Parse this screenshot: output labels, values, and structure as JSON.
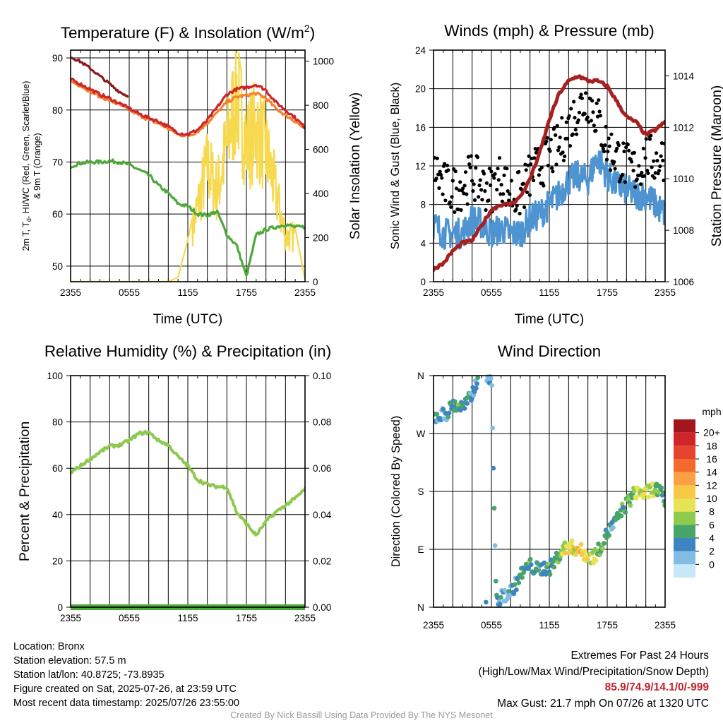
{
  "time_ticks": [
    "2355",
    "0555",
    "1155",
    "1755",
    "2355"
  ],
  "panels": {
    "temperature": {
      "title_main": "Temperature (F) & Insolation (W/m",
      "title_sup": "2",
      "title_end": ")",
      "xlabel": "Time (UTC)",
      "ylabel_left_line1": "2m T, T",
      "ylabel_left_sub": "d",
      "ylabel_left_line1_end": ", HI/WC (Red, Green, Scarlet/Blue)",
      "ylabel_left_line2": "& 9m T (Orange)",
      "ylabel_right": "Solar Insolation (Yellow)",
      "left_ticks": [
        "50",
        "60",
        "70",
        "80",
        "90"
      ],
      "right_ticks": [
        "0",
        "200",
        "400",
        "600",
        "800",
        "1000"
      ]
    },
    "winds": {
      "title": "Winds (mph) & Pressure (mb)",
      "xlabel": "Time (UTC)",
      "ylabel_left": "Sonic Wind & Gust (Blue, Black)",
      "ylabel_right": "Station Pressure (Maroon)",
      "left_ticks": [
        "0",
        "4",
        "8",
        "12",
        "16",
        "20",
        "24"
      ],
      "right_ticks": [
        "1006",
        "1008",
        "1010",
        "1012",
        "1014"
      ]
    },
    "humidity": {
      "title": "Relative Humidity (%) & Precipitation (in)",
      "ylabel_left": "Percent & Precipitation",
      "left_ticks": [
        "0",
        "20",
        "40",
        "60",
        "80",
        "100"
      ],
      "right_ticks": [
        "0.00",
        "0.02",
        "0.04",
        "0.06",
        "0.08",
        "0.10"
      ]
    },
    "direction": {
      "title": "Wind Direction",
      "ylabel_left": "Direction (Colored By Speed)",
      "dir_ticks": [
        "N",
        "E",
        "S",
        "W",
        "N"
      ],
      "legend_title": "mph",
      "legend_labels": [
        "20+",
        "18",
        "16",
        "14",
        "12",
        "10",
        "8",
        "6",
        "4",
        "2",
        "0"
      ],
      "legend_colors": [
        "#a2171e",
        "#cf2529",
        "#e8432f",
        "#f26a2c",
        "#fca045",
        "#f6c843",
        "#e8e356",
        "#8fca4d",
        "#47a56a",
        "#3e84c1",
        "#83bde3",
        "#c7e8f7"
      ]
    }
  },
  "chart_data": [
    {
      "type": "line",
      "title": "Temperature (F) & Insolation (W/m2)",
      "xlabel": "Time (UTC)",
      "ylabel": "2m T, Td, HI/WC (Red, Green, Scarlet/Blue) & 9m T (Orange)",
      "y2label": "Solar Insolation (Yellow)",
      "x": [
        0,
        1,
        2,
        3,
        4,
        5,
        6,
        7,
        8,
        9,
        10,
        11,
        12,
        13,
        14,
        15,
        16,
        17,
        18,
        19,
        20,
        21,
        22,
        23,
        24
      ],
      "ylim": [
        47,
        91.5
      ],
      "y2lim": [
        0,
        1050
      ],
      "series": [
        {
          "name": "2m T",
          "color": "#cf2529",
          "values": [
            85.9,
            85,
            84,
            83,
            82.2,
            81.3,
            80.3,
            79.3,
            78.5,
            77.8,
            76.8,
            75.6,
            75.3,
            76.2,
            78,
            80.5,
            83,
            84,
            84.3,
            84.9,
            83.8,
            81.5,
            80,
            78.5,
            76.6
          ]
        },
        {
          "name": "9m T",
          "color": "#f3822f",
          "values": [
            85.5,
            84.7,
            83.6,
            82.6,
            81.8,
            81,
            80,
            79,
            78.1,
            77.4,
            76.4,
            75.3,
            75,
            75.8,
            77.5,
            79.5,
            81.5,
            82.5,
            82.8,
            83.2,
            82.3,
            80.3,
            79,
            77.8,
            76.3
          ]
        },
        {
          "name": "HI/WC",
          "color": "#8b1a1a",
          "values": [
            90.2,
            89.3,
            88,
            86.5,
            85,
            83.5,
            82.5,
            null,
            null,
            null,
            null,
            null,
            null,
            null,
            null,
            null,
            null,
            null,
            null,
            null,
            null,
            null,
            null,
            null,
            null
          ]
        },
        {
          "name": "Td",
          "color": "#4ea83b",
          "values": [
            69.2,
            69.8,
            70,
            70,
            70.2,
            70,
            69.5,
            68.5,
            67.5,
            65.5,
            64,
            62,
            61.5,
            60,
            59.8,
            60.5,
            56,
            54,
            48,
            56,
            57,
            57.5,
            58,
            57.5,
            57.5
          ]
        },
        {
          "name": "Solar Insolation",
          "color": "#f6d94e",
          "axis": "right",
          "values": [
            0,
            0,
            0,
            0,
            0,
            0,
            0,
            0,
            0,
            0,
            0,
            20,
            190,
            400,
            620,
            480,
            730,
            1010,
            730,
            820,
            700,
            480,
            240,
            240,
            10
          ]
        }
      ]
    },
    {
      "type": "line",
      "title": "Winds (mph) & Pressure (mb)",
      "xlabel": "Time (UTC)",
      "ylabel": "Sonic Wind & Gust (Blue, Black)",
      "y2label": "Station Pressure (Maroon)",
      "x": [
        0,
        1,
        2,
        3,
        4,
        5,
        6,
        7,
        8,
        9,
        10,
        11,
        12,
        13,
        14,
        15,
        16,
        17,
        18,
        19,
        20,
        21,
        22,
        23,
        24
      ],
      "ylim": [
        0,
        24
      ],
      "y2lim": [
        1006,
        1015
      ],
      "series": [
        {
          "name": "Sonic Wind",
          "color": "#4d94d0",
          "values": [
            6,
            5,
            5,
            5,
            6.5,
            6,
            5,
            5.5,
            5,
            5,
            6.5,
            7,
            8,
            9,
            10.5,
            11,
            10.5,
            13,
            11,
            10,
            9.5,
            9,
            9,
            8,
            7
          ]
        },
        {
          "name": "Gust",
          "color": "#000000",
          "values": [
            12,
            10,
            9.5,
            10,
            11,
            10,
            9.5,
            11,
            9,
            9,
            11,
            12,
            13,
            14,
            16,
            18,
            19,
            17,
            14,
            13,
            12,
            11.5,
            13,
            12.5,
            13
          ]
        },
        {
          "name": "Station Pressure",
          "color": "#a52020",
          "axis": "right",
          "values": [
            1006.5,
            1006.7,
            1007.2,
            1007.5,
            1007.6,
            1008.2,
            1008.8,
            1009,
            1009,
            1009.3,
            1010,
            1011,
            1012.3,
            1013.3,
            1013.8,
            1014,
            1013.8,
            1013.8,
            1013.6,
            1013,
            1012.4,
            1012.2,
            1011.7,
            1011.9,
            1012.2
          ]
        }
      ]
    },
    {
      "type": "line",
      "title": "Relative Humidity (%) & Precipitation (in)",
      "ylabel": "Percent & Precipitation",
      "x": [
        0,
        1,
        2,
        3,
        4,
        5,
        6,
        7,
        8,
        9,
        10,
        11,
        12,
        13,
        14,
        15,
        16,
        17,
        18,
        19,
        20,
        21,
        22,
        23,
        24
      ],
      "ylim": [
        0,
        100
      ],
      "y2lim": [
        0,
        0.1
      ],
      "series": [
        {
          "name": "Relative Humidity",
          "color": "#8ec94f",
          "values": [
            58,
            61,
            64,
            67,
            69.5,
            70,
            72,
            75,
            75.5,
            72,
            70,
            65,
            61,
            55,
            53,
            52,
            52,
            41,
            36,
            31,
            37,
            41,
            44,
            47,
            51
          ]
        },
        {
          "name": "Precipitation",
          "color": "#4ea83b",
          "axis": "right",
          "values": [
            0,
            0,
            0,
            0,
            0,
            0,
            0,
            0,
            0,
            0,
            0,
            0,
            0,
            0,
            0,
            0,
            0,
            0,
            0,
            0,
            0,
            0,
            0,
            0,
            0
          ]
        }
      ]
    },
    {
      "type": "scatter",
      "title": "Wind Direction",
      "ylabel": "Direction (Colored By Speed)",
      "x": [
        0,
        0.5,
        1,
        1.5,
        2,
        2.5,
        3,
        3.5,
        4,
        4.5,
        5,
        5.5,
        6,
        6.5,
        7,
        7.5,
        8,
        8.5,
        9,
        9.5,
        10,
        10.5,
        11,
        11.5,
        12,
        12.5,
        13,
        13.5,
        14,
        14.5,
        15,
        15.5,
        16,
        16.5,
        17,
        17.5,
        18,
        18.5,
        19,
        19.5,
        20,
        20.5,
        21,
        21.5,
        22,
        22.5,
        23,
        23.5,
        24
      ],
      "ylim": [
        0,
        360
      ],
      "series": [
        {
          "name": "direction",
          "values": [
            295,
            297,
            300,
            303,
            315,
            312,
            310,
            318,
            330,
            355,
            352,
            358,
            360,
            10,
            15,
            20,
            25,
            35,
            50,
            58,
            65,
            60,
            58,
            62,
            60,
            70,
            82,
            90,
            95,
            92,
            90,
            85,
            80,
            78,
            85,
            100,
            115,
            125,
            135,
            150,
            160,
            170,
            180,
            178,
            175,
            182,
            185,
            178,
            165
          ]
        },
        {
          "name": "speed",
          "values": [
            6,
            5,
            4,
            5,
            6,
            7,
            6,
            6,
            5,
            6,
            5,
            4,
            4,
            6,
            5,
            4,
            5,
            5,
            6,
            6,
            7,
            6,
            5,
            6,
            7,
            6,
            8,
            10,
            12,
            11,
            13,
            12,
            12,
            10,
            8,
            7,
            6,
            5,
            6,
            6,
            7,
            8,
            9,
            10,
            11,
            9,
            8,
            7,
            6
          ]
        }
      ]
    }
  ],
  "info": {
    "location": "Location: Bronx",
    "elevation": "Station elevation: 57.5 m",
    "latlon": "Station lat/lon: 40.8725; -73.8935",
    "created": "Figure created on Sat, 2025-07-26, at 23:59 UTC",
    "recent": "Most recent data timestamp: 2025/07/26 23:55:00",
    "extremes_title": "Extremes For Past 24 Hours",
    "extremes_subtitle": "(High/Low/Max Wind/Precipitation/Snow Depth)",
    "extremes_values": "85.9/74.9/14.1/0/-999",
    "max_gust": "Max Gust: 21.7 mph On 07/26 at 1320 UTC"
  },
  "credit": "Created By Nick Bassill Using Data Provided By The NYS Mesonet"
}
